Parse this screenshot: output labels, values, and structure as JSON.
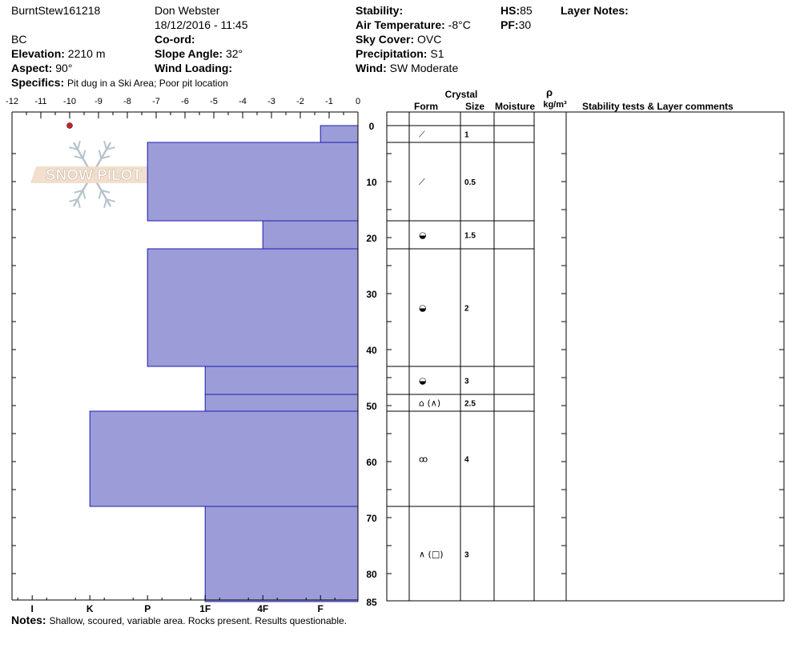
{
  "header": {
    "pit_name": "BurntStew161218",
    "observer": "Don Webster",
    "datetime": "18/12/2016 - 11:45",
    "region": "BC",
    "elevation_label": "Elevation:",
    "elevation_value": "2210 m",
    "aspect_label": "Aspect:",
    "aspect_value": "90°",
    "specifics_label": "Specifics:",
    "specifics_value": "Pit dug in a Ski Area; Poor pit location",
    "coord_label": "Co-ord:",
    "slope_label": "Slope Angle:",
    "slope_value": "32°",
    "wind_loading_label": "Wind Loading:",
    "stability_label": "Stability:",
    "air_temp_label": "Air Temperature:",
    "air_temp_value": "-8°C",
    "sky_label": "Sky Cover:",
    "sky_value": "OVC",
    "precip_label": "Precipitation:",
    "precip_value": "S1",
    "wind_label": "Wind:",
    "wind_value": "SW Moderate",
    "hs_label": "HS:",
    "hs_value": "85",
    "pf_label": "PF:",
    "pf_value": "30",
    "layer_notes_label": "Layer Notes:"
  },
  "notes": {
    "label": "Notes:",
    "text": "Shallow, scoured, variable area.  Rocks present.  Results questionable."
  },
  "watermark": "SNOW PILOT",
  "table_headers": {
    "crystal": "Crystal",
    "form": "Form",
    "size": "Size",
    "moisture": "Moisture",
    "rho": "ρ",
    "density_unit": "kg/m³",
    "comments": "Stability tests & Layer comments"
  },
  "colors": {
    "bar_fill": "#9c9cd8",
    "bar_stroke": "#1c1cb4",
    "temp_point": "#cc2222"
  },
  "chart_data": {
    "type": "bar",
    "orientation": "horizontal",
    "temperature_axis": {
      "ticks": [
        "-12",
        "-11",
        "-10",
        "-9",
        "-8",
        "-7",
        "-6",
        "-5",
        "-4",
        "-3",
        "-2",
        "-1",
        "0"
      ],
      "range": [
        -12,
        0
      ]
    },
    "hardness_axis": {
      "labels": [
        "I",
        "K",
        "P",
        "1F",
        "4F",
        "F"
      ]
    },
    "depth_axis": {
      "ticks": [
        "0",
        "10",
        "20",
        "30",
        "40",
        "50",
        "60",
        "70",
        "80",
        "85"
      ],
      "range": [
        0,
        85
      ]
    },
    "temperature_profile": [
      {
        "depth": 0,
        "temp": -10
      }
    ],
    "layers": [
      {
        "top": 0,
        "bottom": 3,
        "hardness_pos": -1.3,
        "form": "fragment",
        "size": "1"
      },
      {
        "top": 3,
        "bottom": 17,
        "hardness_pos": -7.3,
        "form": "fragment",
        "size": "0.5"
      },
      {
        "top": 17,
        "bottom": 22,
        "hardness_pos": -3.3,
        "form": "rounded",
        "size": "1.5"
      },
      {
        "top": 22,
        "bottom": 43,
        "hardness_pos": -7.3,
        "form": "rounded",
        "size": "2"
      },
      {
        "top": 43,
        "bottom": 48,
        "hardness_pos": -5.3,
        "form": "rounded",
        "size": "3"
      },
      {
        "top": 48,
        "bottom": 51,
        "hardness_pos": -5.3,
        "form": "faceted-depth",
        "size": "2.5"
      },
      {
        "top": 51,
        "bottom": 68,
        "hardness_pos": -9.3,
        "form": "melt",
        "size": "4"
      },
      {
        "top": 68,
        "bottom": 85,
        "hardness_pos": -5.3,
        "form": "depth-faceted",
        "size": "3"
      }
    ],
    "form_symbols": {
      "fragment": "⟋",
      "rounded": "◒",
      "faceted-depth": "⌂ (∧)",
      "melt": "ꝏ",
      "depth-faceted": "∧ (□)"
    }
  }
}
